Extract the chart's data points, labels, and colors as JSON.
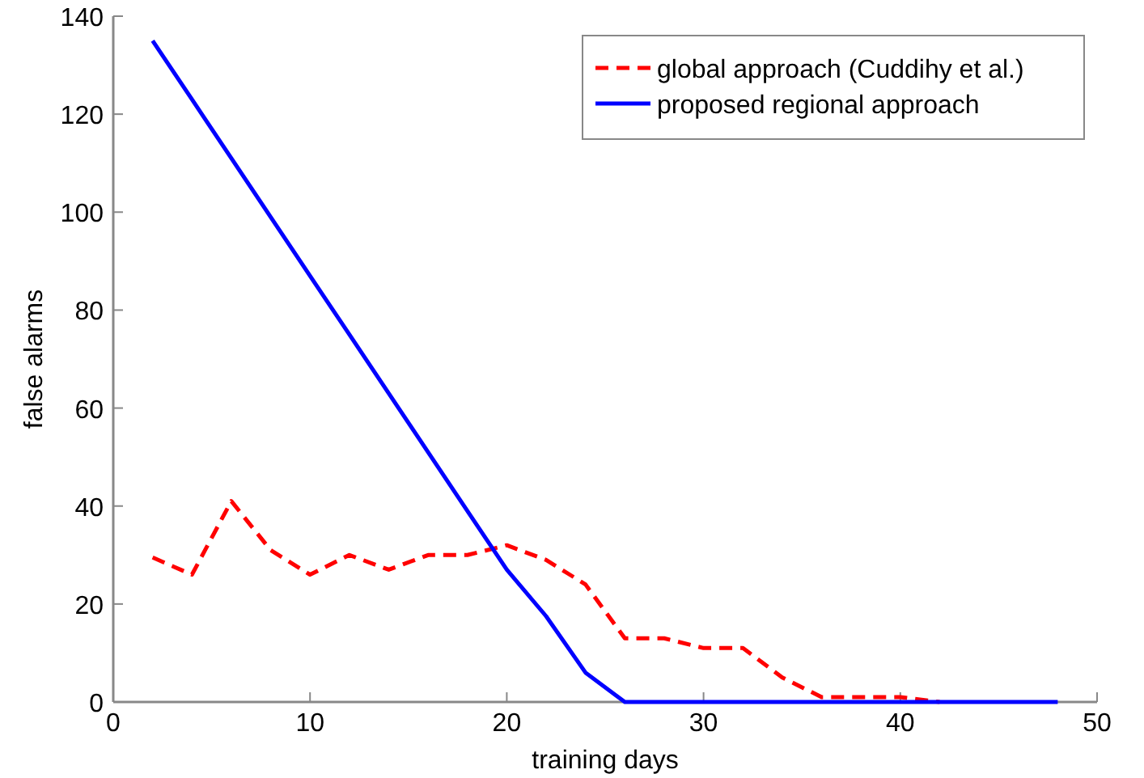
{
  "chart_data": {
    "type": "line",
    "xlabel": "training days",
    "ylabel": "false alarms",
    "xlim": [
      0,
      50
    ],
    "xticks": [
      0,
      10,
      20,
      30,
      40,
      50
    ],
    "ylim": [
      0,
      140
    ],
    "yticks": [
      0,
      20,
      40,
      60,
      80,
      100,
      120,
      140
    ],
    "grid": false,
    "legend": "top right",
    "marker": "none",
    "series": [
      {
        "name": "global approach (Cuddihy et al.)",
        "color": "#ff0000",
        "line_style": "dashed",
        "x": [
          2,
          4,
          6,
          8,
          10,
          12,
          14,
          16,
          18,
          20,
          22,
          24,
          26,
          28,
          30,
          32,
          34,
          36,
          38,
          40,
          42
        ],
        "values": [
          29.5,
          26,
          41,
          31,
          26,
          30,
          27,
          30,
          30,
          32,
          29,
          24,
          13,
          13,
          11,
          11,
          5,
          1,
          1,
          1,
          0
        ]
      },
      {
        "name": "proposed regional approach",
        "color": "#0000ff",
        "line_style": "solid",
        "x": [
          2,
          4,
          6,
          8,
          10,
          12,
          14,
          16,
          18,
          20,
          22,
          24,
          26,
          28,
          30,
          32,
          34,
          36,
          38,
          40,
          42,
          44,
          46,
          48
        ],
        "values": [
          135,
          123,
          111,
          99,
          87,
          75,
          63,
          51,
          39,
          27,
          17.5,
          6,
          0,
          0,
          0,
          0,
          0,
          0,
          0,
          0,
          0,
          0,
          0,
          0
        ]
      }
    ]
  }
}
